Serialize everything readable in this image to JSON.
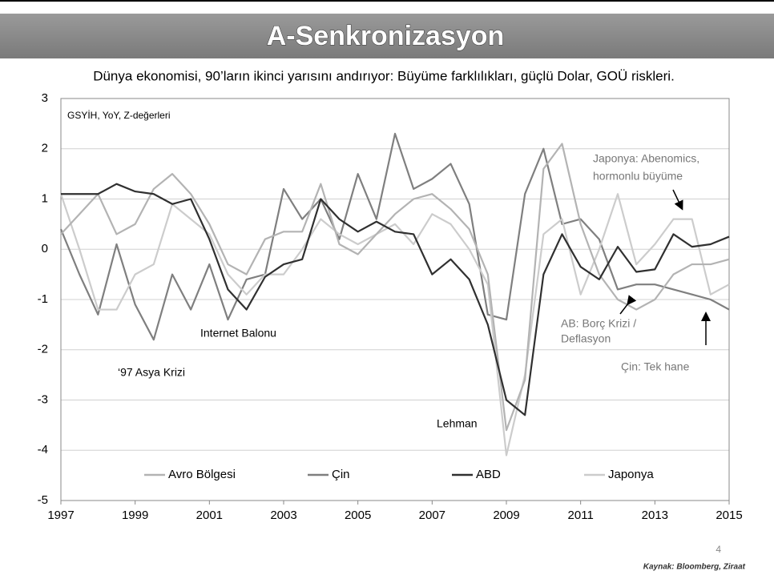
{
  "chart_data": {
    "type": "line",
    "title": "A-Senkronizasyon",
    "subtitle": "Dünya ekonomisi, 90’ların ikinci yarısını andırıyor: Büyüme farklılıkları, güçlü Dolar, GOÜ riskleri.",
    "y_axis_note": "GSYİH, YoY, Z-değerleri",
    "x": [
      1997,
      1997.5,
      1998,
      1998.5,
      1999,
      1999.5,
      2000,
      2000.5,
      2001,
      2001.5,
      2002,
      2002.5,
      2003,
      2003.5,
      2004,
      2004.5,
      2005,
      2005.5,
      2006,
      2006.5,
      2007,
      2007.5,
      2008,
      2008.5,
      2009,
      2009.5,
      2010,
      2010.5,
      2011,
      2011.5,
      2012,
      2012.5,
      2013,
      2013.5,
      2014,
      2014.5,
      2015
    ],
    "series": [
      {
        "name": "Avro Bölgesi",
        "color": "#b3b3b3",
        "values": [
          0.3,
          0.7,
          1.1,
          0.3,
          0.5,
          1.2,
          1.5,
          1.1,
          0.5,
          -0.3,
          -0.5,
          0.2,
          0.35,
          0.35,
          1.3,
          0.1,
          -0.1,
          0.3,
          0.7,
          1.0,
          1.1,
          0.8,
          0.4,
          -0.5,
          -3.6,
          -2.6,
          1.6,
          2.1,
          0.5,
          -0.5,
          -1.0,
          -1.2,
          -1.0,
          -0.5,
          -0.3,
          -0.3,
          -0.2
        ]
      },
      {
        "name": "Çin",
        "color": "#7f7f7f",
        "values": [
          0.4,
          -0.5,
          -1.3,
          0.1,
          -1.1,
          -1.8,
          -0.5,
          -1.2,
          -0.3,
          -1.4,
          -0.6,
          -0.5,
          1.2,
          0.6,
          1.0,
          0.2,
          1.5,
          0.6,
          2.3,
          1.2,
          1.4,
          1.7,
          0.9,
          -1.3,
          -1.4,
          1.1,
          2.0,
          0.5,
          0.6,
          0.2,
          -0.8,
          -0.7,
          -0.7,
          -0.8,
          -0.9,
          -1.0,
          -1.2
        ]
      },
      {
        "name": "ABD",
        "color": "#303030",
        "values": [
          1.1,
          1.1,
          1.1,
          1.3,
          1.15,
          1.1,
          0.9,
          1.0,
          0.2,
          -0.8,
          -1.2,
          -0.55,
          -0.3,
          -0.2,
          1.0,
          0.6,
          0.35,
          0.55,
          0.35,
          0.3,
          -0.5,
          -0.2,
          -0.6,
          -1.5,
          -3.0,
          -3.3,
          -0.5,
          0.3,
          -0.35,
          -0.6,
          0.05,
          -0.45,
          -0.4,
          0.3,
          0.05,
          0.1,
          0.25
        ]
      },
      {
        "name": "Japonya",
        "color": "#cccccc",
        "values": [
          1.1,
          0.0,
          -1.2,
          -1.2,
          -0.5,
          -0.3,
          0.9,
          0.6,
          0.3,
          -0.5,
          -0.9,
          -0.5,
          -0.5,
          0.0,
          0.6,
          0.3,
          0.1,
          0.3,
          0.5,
          0.1,
          0.7,
          0.5,
          0.0,
          -0.7,
          -4.1,
          -2.5,
          0.3,
          0.6,
          -0.9,
          0.0,
          1.1,
          -0.3,
          0.1,
          0.6,
          0.6,
          -0.9,
          -0.7
        ]
      }
    ],
    "xlim": [
      1997,
      2015
    ],
    "xticks": [
      1997,
      1999,
      2001,
      2003,
      2005,
      2007,
      2009,
      2011,
      2013,
      2015
    ],
    "ylim": [
      -5,
      3
    ],
    "yticks": [
      -5,
      -4,
      -3,
      -2,
      -1,
      0,
      1,
      2,
      3
    ],
    "grid": true,
    "legend": "bottom",
    "annotations": [
      "Internet Balonu",
      "‘97 Asya Krizi",
      "Lehman",
      "Japonya: Abenomics,",
      "hormonlu büyüme",
      "AB: Borç Krizi /",
      "Deflasyon",
      "Çin: Tek hane"
    ]
  },
  "page_number": 4,
  "source": "Kaynak: Bloomberg, Ziraat"
}
